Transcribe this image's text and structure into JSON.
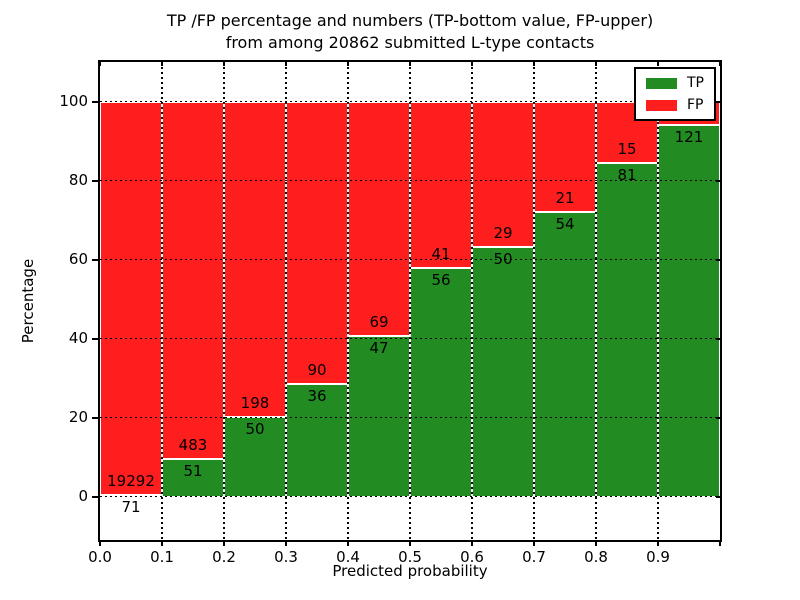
{
  "title": {
    "line1": "TP /FP percentage and numbers (TP-bottom value, FP-upper)",
    "line2": "from among 20862 submitted L-type contacts"
  },
  "chart_data": {
    "type": "bar",
    "stacked": true,
    "title": "TP /FP percentage and numbers (TP-bottom value, FP-upper) from among 20862 submitted L-type contacts",
    "xlabel": "Predicted probability",
    "ylabel": "Percentage",
    "total_submitted_contacts": 20862,
    "xlim": [
      0.0,
      1.0
    ],
    "ylim": [
      -11,
      110
    ],
    "grid": "dotted",
    "legend_position": "upper-right",
    "x_tick_labels": [
      "0.0",
      "0.1",
      "0.2",
      "0.3",
      "0.4",
      "0.5",
      "0.6",
      "0.7",
      "0.8",
      "0.9"
    ],
    "y_tick_values": [
      0,
      20,
      40,
      60,
      80,
      100
    ],
    "y_tick_labels": [
      "0",
      "20",
      "40",
      "60",
      "80",
      "100"
    ],
    "colors": {
      "tp": "#228B22",
      "fp": "#FF1E1E",
      "bar_edge": "#FFFFFF",
      "grid": "#000000"
    },
    "legend": [
      {
        "label": "TP",
        "color_key": "tp"
      },
      {
        "label": "FP",
        "color_key": "fp"
      }
    ],
    "bars": [
      {
        "bin": "0.0-0.1",
        "tp": 71,
        "fp": 19292,
        "tp_pct": 0.37
      },
      {
        "bin": "0.1-0.2",
        "tp": 51,
        "fp": 483,
        "tp_pct": 9.55
      },
      {
        "bin": "0.2-0.3",
        "tp": 50,
        "fp": 198,
        "tp_pct": 20.16
      },
      {
        "bin": "0.3-0.4",
        "tp": 36,
        "fp": 90,
        "tp_pct": 28.57
      },
      {
        "bin": "0.4-0.5",
        "tp": 47,
        "fp": 69,
        "tp_pct": 40.52
      },
      {
        "bin": "0.5-0.6",
        "tp": 56,
        "fp": 41,
        "tp_pct": 57.73
      },
      {
        "bin": "0.6-0.7",
        "tp": 50,
        "fp": 29,
        "tp_pct": 63.29
      },
      {
        "bin": "0.7-0.8",
        "tp": 54,
        "fp": 21,
        "tp_pct": 72.0
      },
      {
        "bin": "0.8-0.9",
        "tp": 81,
        "fp": 15,
        "tp_pct": 84.4
      },
      {
        "bin": "0.9-1.0",
        "tp": 121,
        "fp": null,
        "tp_pct": 94.0
      }
    ]
  }
}
